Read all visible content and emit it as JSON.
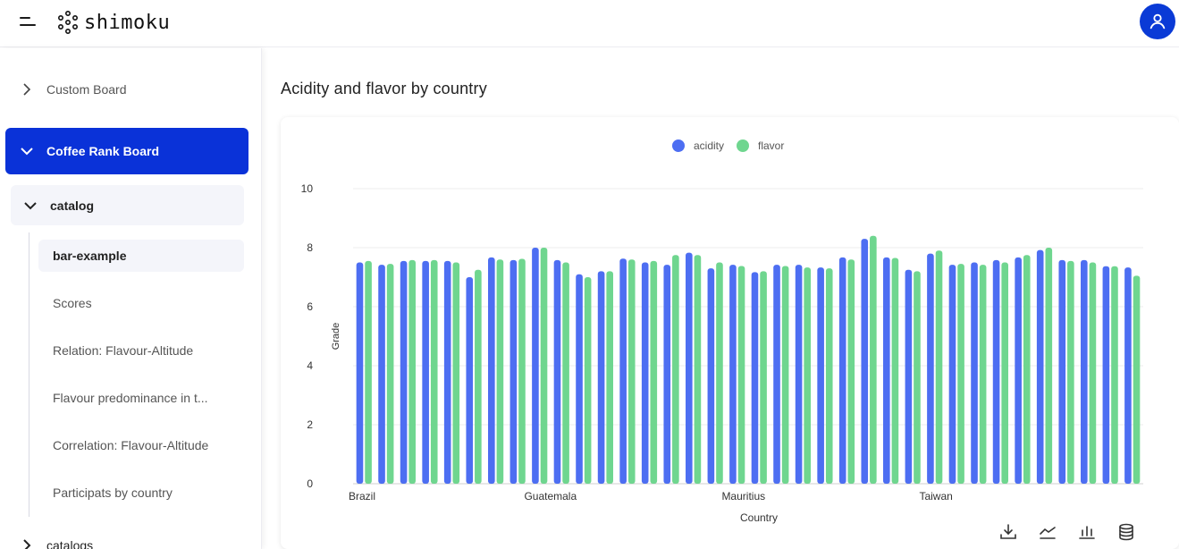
{
  "header": {
    "brand": "shimoku",
    "icons": {
      "menu": "menu-icon",
      "logo": "shimoku-logo-icon",
      "user": "user-icon"
    },
    "accent_color": "#0a3ad6"
  },
  "sidebar": {
    "items": [
      {
        "label": "Custom Board",
        "icon": "chevron-right-icon"
      },
      {
        "label": "Coffee Rank Board",
        "icon": "chevron-down-icon",
        "active": true
      },
      {
        "label": "catalog",
        "icon": "chevron-down-icon"
      },
      {
        "label": "catalogs",
        "icon": "chevron-right-icon"
      }
    ],
    "sub_items": [
      {
        "label": "bar-example",
        "active": true
      },
      {
        "label": "Scores"
      },
      {
        "label": "Relation: Flavour-Altitude"
      },
      {
        "label": "Flavour predominance in t..."
      },
      {
        "label": "Correlation: Flavour-Altitude"
      },
      {
        "label": "Participats by country"
      }
    ]
  },
  "main": {
    "title": "Acidity and flavor by country",
    "toolbar": [
      "download-icon",
      "line-chart-icon",
      "bar-chart-icon",
      "database-icon"
    ]
  },
  "chart_data": {
    "type": "bar",
    "xlabel": "Country",
    "ylabel": "Grade",
    "ylim": [
      0,
      10
    ],
    "yticks": [
      0,
      2,
      4,
      6,
      8,
      10
    ],
    "legend_position": "top-center",
    "x_tick_labels": [
      {
        "label": "Brazil",
        "index": 0
      },
      {
        "label": "Guatemala",
        "index": 8
      },
      {
        "label": "Mauritius",
        "index": 17
      },
      {
        "label": "Taiwan",
        "index": 26
      }
    ],
    "series": [
      {
        "name": "acidity",
        "color": "#4d6ef2",
        "values": [
          7.5,
          7.42,
          7.55,
          7.55,
          7.55,
          7.0,
          7.67,
          7.58,
          8.0,
          7.58,
          7.1,
          7.2,
          7.63,
          7.5,
          7.42,
          7.83,
          7.3,
          7.42,
          7.17,
          7.42,
          7.42,
          7.33,
          7.67,
          8.3,
          7.67,
          7.25,
          7.8,
          7.42,
          7.5,
          7.58,
          7.67,
          7.92,
          7.58,
          7.58,
          7.37,
          7.33
        ]
      },
      {
        "name": "flavor",
        "color": "#6fd68f",
        "values": [
          7.55,
          7.45,
          7.58,
          7.58,
          7.5,
          7.25,
          7.6,
          7.62,
          8.0,
          7.5,
          7.0,
          7.2,
          7.6,
          7.55,
          7.75,
          7.75,
          7.5,
          7.38,
          7.2,
          7.38,
          7.33,
          7.3,
          7.6,
          8.4,
          7.65,
          7.2,
          7.9,
          7.45,
          7.42,
          7.5,
          7.75,
          8.0,
          7.55,
          7.5,
          7.37,
          7.05
        ]
      }
    ]
  }
}
